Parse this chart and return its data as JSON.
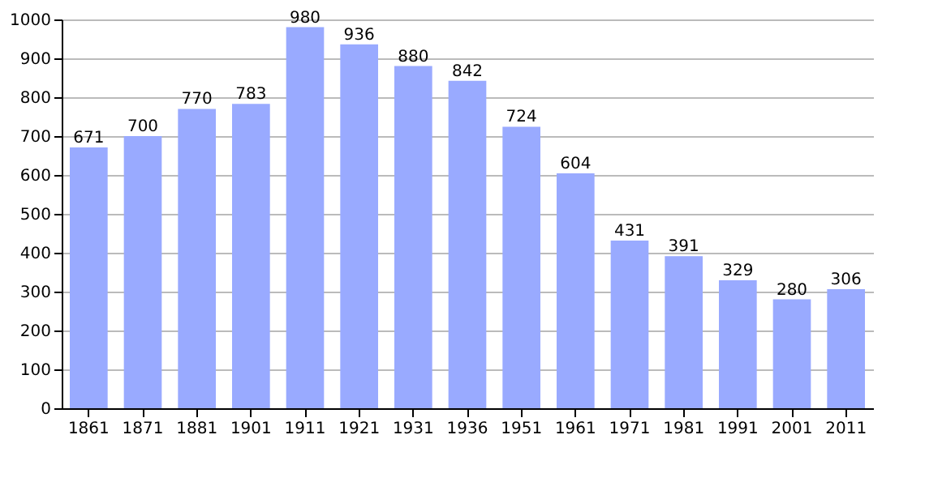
{
  "chart_data": {
    "type": "bar",
    "categories": [
      "1861",
      "1871",
      "1881",
      "1901",
      "1911",
      "1921",
      "1931",
      "1936",
      "1951",
      "1961",
      "1971",
      "1981",
      "1991",
      "2001",
      "2011"
    ],
    "values": [
      671,
      700,
      770,
      783,
      980,
      936,
      880,
      842,
      724,
      604,
      431,
      391,
      329,
      280,
      306
    ],
    "color": "#99aaff",
    "ylim": [
      0,
      1000
    ],
    "yticks": [
      0,
      100,
      200,
      300,
      400,
      500,
      600,
      700,
      800,
      900,
      1000
    ],
    "grid": "y",
    "data_labels": true
  }
}
